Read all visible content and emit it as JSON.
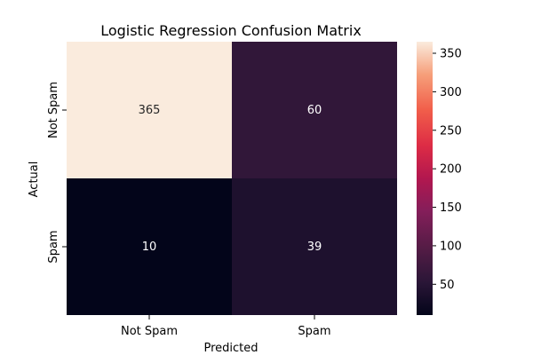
{
  "chart_data": {
    "type": "heatmap",
    "title": "Logistic Regression Confusion Matrix",
    "xlabel": "Predicted",
    "ylabel": "Actual",
    "x_categories": [
      "Not Spam",
      "Spam"
    ],
    "y_categories": [
      "Not Spam",
      "Spam"
    ],
    "values": [
      [
        365,
        60
      ],
      [
        10,
        39
      ]
    ],
    "colorbar": {
      "min": 10,
      "max": 365,
      "ticks": [
        50,
        100,
        150,
        200,
        250,
        300,
        350
      ],
      "colormap": "rocket"
    },
    "annotation_colors": {
      "light": "#ffffff",
      "dark": "#262626"
    }
  }
}
